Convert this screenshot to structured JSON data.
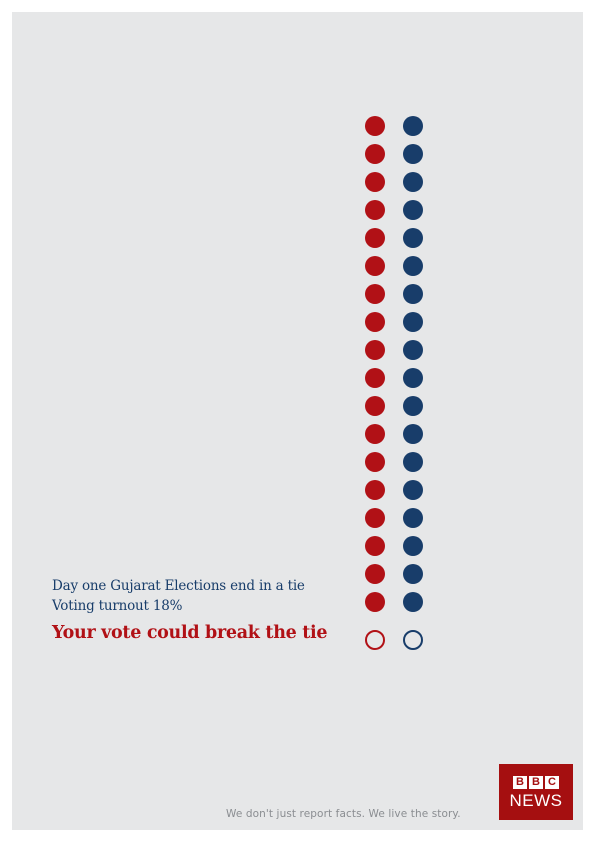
{
  "headline": {
    "line1": "Day one Gujarat Elections end in a tie",
    "line2": "Voting turnout 18%",
    "line3": "Your vote could break the tie"
  },
  "tally": {
    "red_filled": 18,
    "blue_filled": 18,
    "red_open": 1,
    "blue_open": 1,
    "red_color": "#b11116",
    "blue_color": "#183d6a"
  },
  "footer": {
    "tagline": "We don't just report facts. We live the story."
  },
  "logo": {
    "letters": [
      "B",
      "B",
      "C"
    ],
    "word": "NEWS",
    "color": "#a50f10"
  }
}
